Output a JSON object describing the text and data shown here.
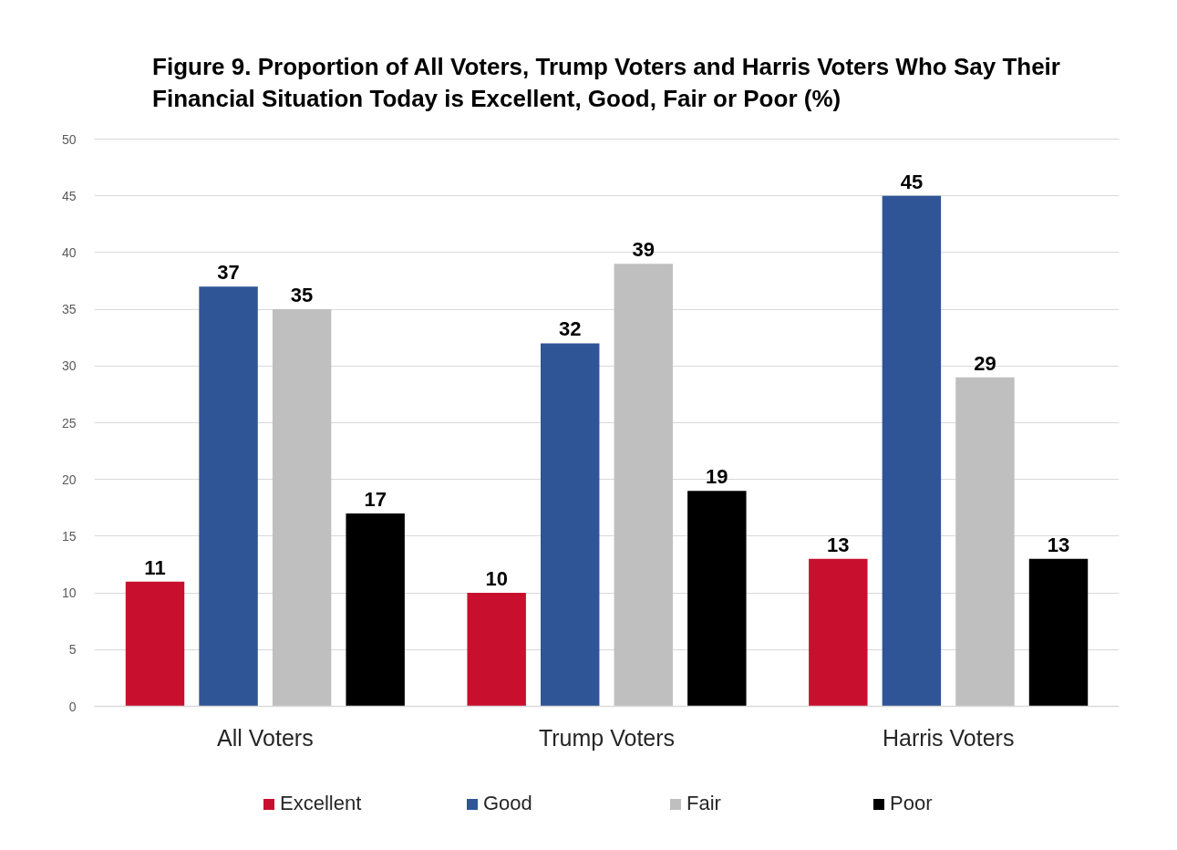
{
  "chart_data": {
    "type": "bar",
    "title": "Figure 9. Proportion of All Voters, Trump Voters and Harris Voters Who Say Their Financial Situation Today is Excellent, Good, Fair or Poor (%)",
    "categories": [
      "All Voters",
      "Trump Voters",
      "Harris Voters"
    ],
    "series": [
      {
        "name": "Excellent",
        "color": "#c8102e",
        "values": [
          11,
          10,
          13
        ]
      },
      {
        "name": "Good",
        "color": "#2f5597",
        "values": [
          37,
          32,
          45
        ]
      },
      {
        "name": "Fair",
        "color": "#bfbfbf",
        "values": [
          35,
          39,
          29
        ]
      },
      {
        "name": "Poor",
        "color": "#000000",
        "values": [
          17,
          19,
          13
        ]
      }
    ],
    "ylim": [
      0,
      50
    ],
    "yticks": [
      0,
      5,
      10,
      15,
      20,
      25,
      30,
      35,
      40,
      45,
      50
    ],
    "grid": "y",
    "legend": "bottom",
    "data_labels": true
  }
}
